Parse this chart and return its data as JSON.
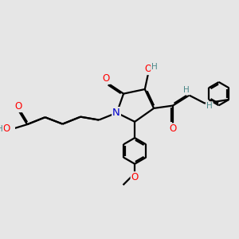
{
  "bg_color": "#e6e6e6",
  "bond_color": "#000000",
  "bond_width": 1.6,
  "dbo": 0.055,
  "atom_colors": {
    "O": "#ff0000",
    "N": "#0000cc",
    "H": "#4a8888",
    "C": "#000000"
  },
  "fs": 8.5
}
